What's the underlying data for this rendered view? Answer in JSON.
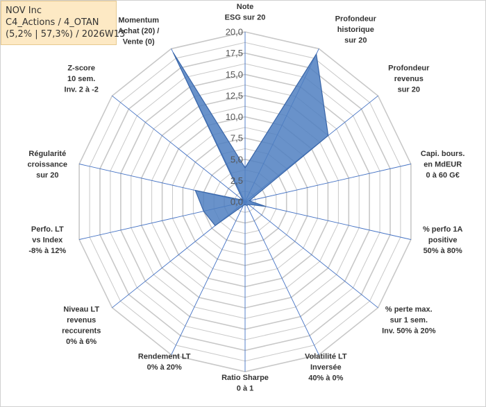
{
  "header": {
    "line1": "NOV Inc",
    "line2": "C4_Actions / 4_OTAN",
    "line3": "(5,2% | 57,3%) / 2026W13"
  },
  "colors": {
    "fill": "#4f7fc1",
    "stroke": "#3a66a8",
    "grid": "#c8c8c8",
    "spoke": "#4472c4"
  },
  "chart_data": {
    "type": "radar",
    "title": "",
    "rlim": [
      0,
      20
    ],
    "ticks": [
      "0,0",
      "2,5",
      "5,0",
      "7,5",
      "10,0",
      "12,5",
      "15,0",
      "17,5",
      "20,0"
    ],
    "tick_values": [
      0,
      2.5,
      5,
      7.5,
      10,
      12.5,
      15,
      17.5,
      20
    ],
    "grid": true,
    "categories": [
      [
        "Note",
        "ESG sur 20"
      ],
      [
        "Profondeur",
        "historique",
        "sur 20"
      ],
      [
        "Profondeur",
        "revenus",
        "sur 20"
      ],
      [
        "Capi. bours.",
        "en MdEUR",
        "0 à 60 G€"
      ],
      [
        "% perfo 1A",
        "positive",
        "50% à 80%"
      ],
      [
        "% perte max.",
        "sur 1 sem.",
        "Inv. 50% à 20%"
      ],
      [
        "Volatilité LT",
        "Inversée",
        "40% à 0%"
      ],
      [
        "Ratio Sharpe",
        "0 à 1"
      ],
      [
        "Rendement LT",
        "0% à 20%"
      ],
      [
        "Niveau LT",
        "revenus",
        "reccurents",
        "0% à 6%"
      ],
      [
        "Perfo. LT",
        "vs Index",
        "-8% à 12%"
      ],
      [
        "Régularité",
        "croissance",
        "sur 20"
      ],
      [
        "Z-score",
        "10 sem.",
        "Inv. 2 à -2"
      ],
      [
        "Momentum",
        "Achat (20) /",
        "Vente (0)"
      ]
    ],
    "series": [
      {
        "values": [
          4,
          19.3,
          12.5,
          0.5,
          2.5,
          0.5,
          0.5,
          0.3,
          0.5,
          4.5,
          5.0,
          6.0,
          0.3,
          19.5
        ]
      }
    ]
  }
}
